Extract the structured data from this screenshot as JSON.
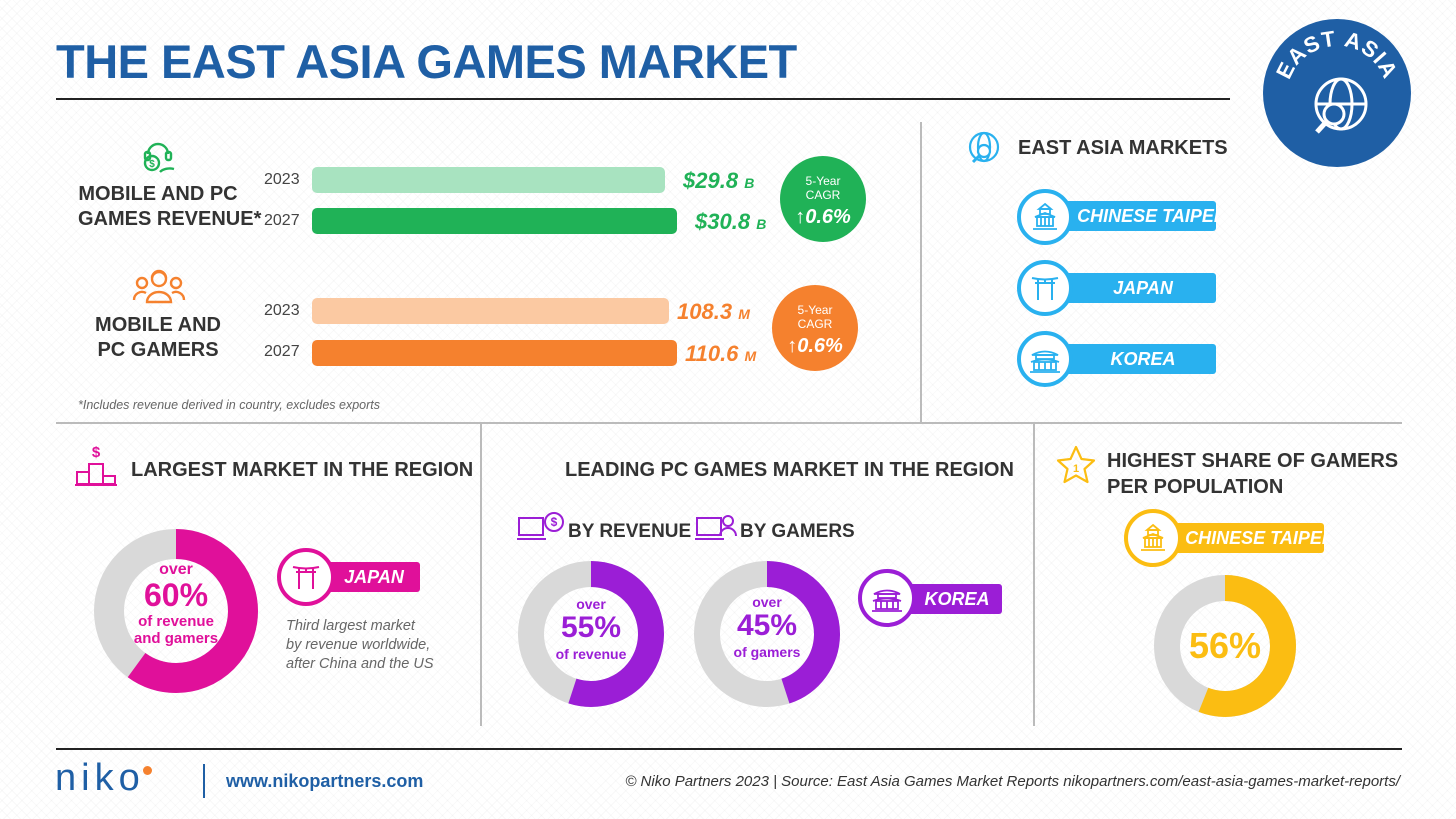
{
  "title": "THE EAST ASIA GAMES MARKET",
  "badge_text": "EAST ASIA",
  "colors": {
    "brand_blue": "#1f5fa5",
    "green": "#20b257",
    "green_light": "#a8e3c0",
    "orange": "#f5812e",
    "orange_light": "#fbc9a2",
    "sky": "#29b1ef",
    "magenta": "#e0109a",
    "purple": "#9b1ed6",
    "yellow": "#fbbd12",
    "track_gray": "#d9d9d9"
  },
  "revenue": {
    "label_line1": "MOBILE AND PC",
    "label_line2": "GAMES REVENUE*",
    "cagr_label_line1": "5-Year",
    "cagr_label_line2": "CAGR",
    "cagr_value": "0.6%"
  },
  "gamers": {
    "label_line1": "MOBILE AND",
    "label_line2": "PC GAMERS",
    "cagr_label_line1": "5-Year",
    "cagr_label_line2": "CAGR",
    "cagr_value": "0.6%"
  },
  "chart_data": [
    {
      "type": "bar",
      "orientation": "horizontal",
      "title": "MOBILE AND PC GAMES REVENUE*",
      "categories": [
        "2023",
        "2027"
      ],
      "values": [
        29.8,
        30.8
      ],
      "value_labels": [
        "$29.8",
        "$30.8"
      ],
      "unit": "B",
      "colors": [
        "#a8e3c0",
        "#20b257"
      ]
    },
    {
      "type": "bar",
      "orientation": "horizontal",
      "title": "MOBILE AND PC GAMERS",
      "categories": [
        "2023",
        "2027"
      ],
      "values": [
        108.3,
        110.6
      ],
      "value_labels": [
        "108.3",
        "110.6"
      ],
      "unit": "M",
      "colors": [
        "#fbc9a2",
        "#f5812e"
      ]
    },
    {
      "type": "pie",
      "title": "LARGEST MARKET IN THE REGION",
      "values": [
        60,
        40
      ],
      "colors": [
        "#e0109a",
        "#d9d9d9"
      ]
    },
    {
      "type": "pie",
      "title": "BY REVENUE",
      "values": [
        55,
        45
      ],
      "colors": [
        "#9b1ed6",
        "#d9d9d9"
      ]
    },
    {
      "type": "pie",
      "title": "BY GAMERS",
      "values": [
        45,
        55
      ],
      "colors": [
        "#9b1ed6",
        "#d9d9d9"
      ]
    },
    {
      "type": "pie",
      "title": "HIGHEST SHARE OF GAMERS PER POPULATION",
      "values": [
        56,
        44
      ],
      "colors": [
        "#fbbd12",
        "#d9d9d9"
      ]
    }
  ],
  "footnote": "*Includes revenue derived in country,  excludes exports",
  "markets": {
    "heading": "EAST ASIA MARKETS",
    "items": [
      {
        "label": "CHINESE TAIPEI",
        "icon": "temple-icon"
      },
      {
        "label": "JAPAN",
        "icon": "torii-gate-icon"
      },
      {
        "label": "KOREA",
        "icon": "palace-icon"
      }
    ]
  },
  "largest": {
    "heading": "LARGEST MARKET IN THE REGION",
    "donut_over": "over",
    "donut_pct": "60%",
    "donut_sub1": "of revenue",
    "donut_sub2": "and gamers",
    "pill_label": "JAPAN",
    "note_line1": "Third largest market",
    "note_line2": "by revenue worldwide,",
    "note_line3": "after China and the US"
  },
  "leading_pc": {
    "heading": "LEADING PC GAMES MARKET IN THE REGION",
    "by_revenue_label": "BY REVENUE",
    "by_gamers_label": "BY GAMERS",
    "rev_over": "over",
    "rev_pct": "55%",
    "rev_sub": "of revenue",
    "gam_over": "over",
    "gam_pct": "45%",
    "gam_sub": "of gamers",
    "pill_label": "KOREA"
  },
  "highest_share": {
    "heading_line1": "HIGHEST SHARE OF GAMERS",
    "heading_line2": "PER POPULATION",
    "pill_label": "CHINESE TAIPEI",
    "donut_pct": "56%"
  },
  "footer": {
    "logo": "niko",
    "url": "www.nikopartners.com",
    "source": "© Niko Partners 2023  |  Source: East Asia Games Market Reports nikopartners.com/east-asia-games-market-reports/"
  }
}
